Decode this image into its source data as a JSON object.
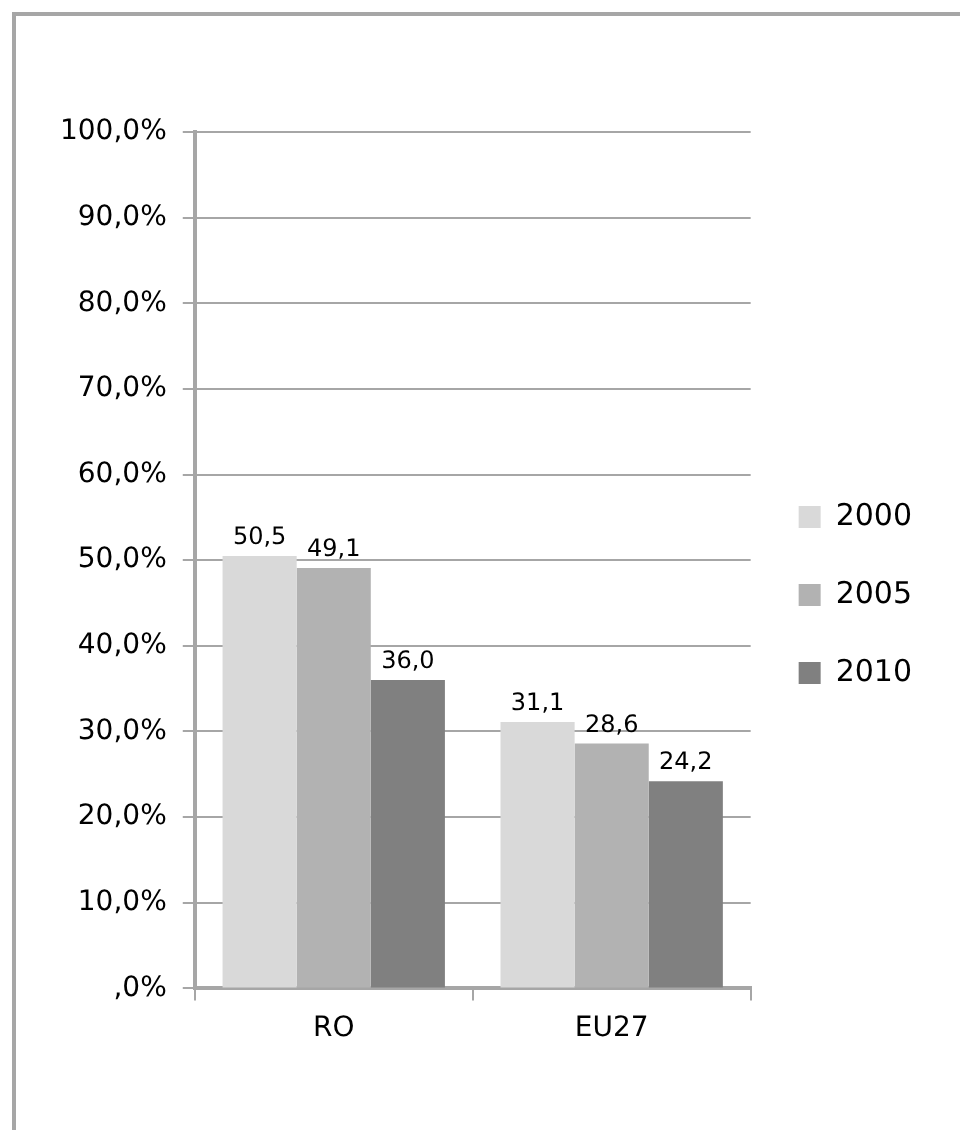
{
  "chart_data": {
    "type": "bar",
    "categories": [
      "RO",
      "EU27"
    ],
    "series": [
      {
        "name": "2000",
        "color": "#d9d9d9",
        "values": [
          50.5,
          31.1
        ],
        "value_labels": [
          "50,5",
          "31,1"
        ]
      },
      {
        "name": "2005",
        "color": "#b2b2b2",
        "values": [
          49.1,
          28.6
        ],
        "value_labels": [
          "49,1",
          "28,6"
        ]
      },
      {
        "name": "2010",
        "color": "#808080",
        "values": [
          36.0,
          24.2
        ],
        "value_labels": [
          "36,0",
          "24,2"
        ]
      }
    ],
    "ylim": [
      0,
      100
    ],
    "yticks": [
      {
        "value": 0,
        "label": ",0%"
      },
      {
        "value": 10,
        "label": "10,0%"
      },
      {
        "value": 20,
        "label": "20,0%"
      },
      {
        "value": 30,
        "label": "30,0%"
      },
      {
        "value": 40,
        "label": "40,0%"
      },
      {
        "value": 50,
        "label": "50,0%"
      },
      {
        "value": 60,
        "label": "60,0%"
      },
      {
        "value": 70,
        "label": "70,0%"
      },
      {
        "value": 80,
        "label": "80,0%"
      },
      {
        "value": 90,
        "label": "90,0%"
      },
      {
        "value": 100,
        "label": "100,0%"
      }
    ],
    "grid": "y",
    "legend": "right"
  }
}
